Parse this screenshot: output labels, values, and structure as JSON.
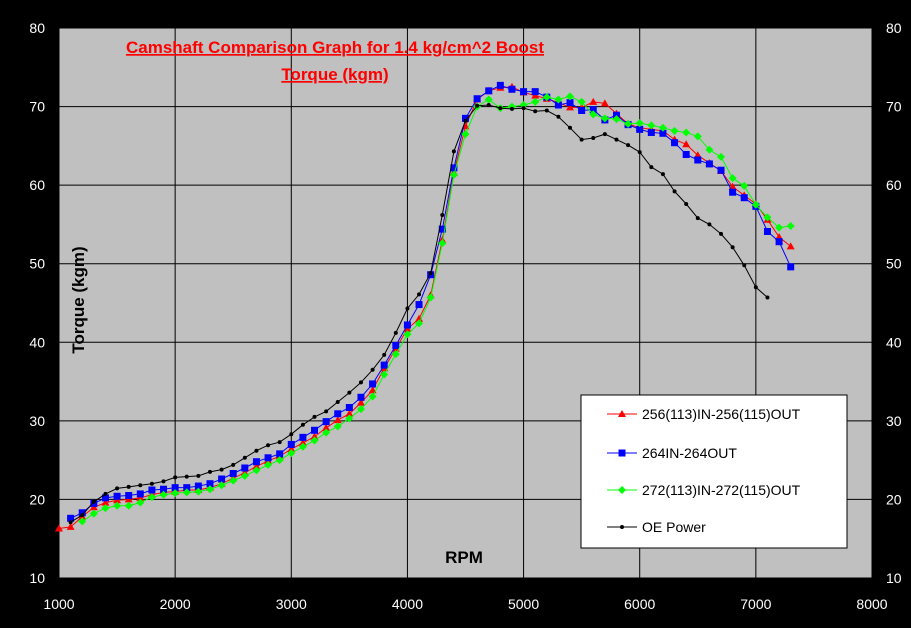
{
  "chart_data": {
    "type": "line",
    "title": "Camshaft Comparison Graph for 1.4 kg/cm^2 Boost",
    "subtitle": "Torque (kgm)",
    "xlabel": "RPM",
    "ylabel": "Torque (kgm)",
    "xlim": [
      1000,
      8000
    ],
    "ylim": [
      10,
      80
    ],
    "x_ticks": [
      1000,
      2000,
      3000,
      4000,
      5000,
      6000,
      7000,
      8000
    ],
    "y_ticks": [
      10,
      20,
      30,
      40,
      50,
      60,
      70,
      80
    ],
    "grid": true,
    "secondary_y_axis": true,
    "legend_position": "bottom-right",
    "colors": {
      "background": "#000000",
      "plot_area": "#c0c0c0",
      "grid": "#000000",
      "title": "#ff0000",
      "tick_text": "#ffffff",
      "axis_label": "#000000"
    },
    "series": [
      {
        "name": "256(113)IN-256(115)OUT",
        "color": "#ff0000",
        "marker": "triangle",
        "points": [
          [
            1000,
            16.3
          ],
          [
            1100,
            16.5
          ],
          [
            1200,
            17.8
          ],
          [
            1300,
            19.0
          ],
          [
            1400,
            19.6
          ],
          [
            1500,
            19.9
          ],
          [
            1600,
            20.0
          ],
          [
            1700,
            20.2
          ],
          [
            1800,
            20.6
          ],
          [
            1900,
            20.9
          ],
          [
            2000,
            21.0
          ],
          [
            2100,
            21.2
          ],
          [
            2200,
            21.2
          ],
          [
            2300,
            21.5
          ],
          [
            2400,
            22.0
          ],
          [
            2500,
            22.7
          ],
          [
            2600,
            23.4
          ],
          [
            2700,
            24.2
          ],
          [
            2800,
            24.9
          ],
          [
            2900,
            25.5
          ],
          [
            3000,
            26.4
          ],
          [
            3100,
            27.2
          ],
          [
            3200,
            28.0
          ],
          [
            3300,
            29.1
          ],
          [
            3400,
            30.1
          ],
          [
            3500,
            30.9
          ],
          [
            3600,
            32.3
          ],
          [
            3700,
            33.9
          ],
          [
            3800,
            36.7
          ],
          [
            3900,
            39.2
          ],
          [
            4000,
            41.7
          ],
          [
            4100,
            43.0
          ],
          [
            4200,
            46.0
          ],
          [
            4300,
            53.0
          ],
          [
            4400,
            61.6
          ],
          [
            4500,
            67.5
          ],
          [
            4600,
            70.9
          ],
          [
            4700,
            72.0
          ],
          [
            4800,
            72.4
          ],
          [
            4900,
            72.5
          ],
          [
            5000,
            71.8
          ],
          [
            5100,
            71.4
          ],
          [
            5200,
            71.0
          ],
          [
            5300,
            70.5
          ],
          [
            5400,
            69.9
          ],
          [
            5500,
            69.9
          ],
          [
            5600,
            70.6
          ],
          [
            5700,
            70.4
          ],
          [
            5800,
            69.1
          ],
          [
            5900,
            67.8
          ],
          [
            6000,
            67.3
          ],
          [
            6100,
            67.1
          ],
          [
            6200,
            66.9
          ],
          [
            6300,
            65.8
          ],
          [
            6400,
            65.2
          ],
          [
            6500,
            63.8
          ],
          [
            6600,
            62.8
          ],
          [
            6700,
            61.8
          ],
          [
            6800,
            59.8
          ],
          [
            6900,
            58.7
          ],
          [
            7000,
            57.6
          ],
          [
            7100,
            55.6
          ],
          [
            7200,
            53.4
          ],
          [
            7300,
            52.2
          ]
        ]
      },
      {
        "name": "264IN-264OUT",
        "color": "#0000ff",
        "marker": "square",
        "points": [
          [
            1100,
            17.6
          ],
          [
            1200,
            18.3
          ],
          [
            1300,
            19.5
          ],
          [
            1400,
            20.2
          ],
          [
            1500,
            20.4
          ],
          [
            1600,
            20.5
          ],
          [
            1700,
            20.7
          ],
          [
            1800,
            21.2
          ],
          [
            1900,
            21.3
          ],
          [
            2000,
            21.5
          ],
          [
            2100,
            21.5
          ],
          [
            2200,
            21.7
          ],
          [
            2300,
            22.0
          ],
          [
            2400,
            22.6
          ],
          [
            2500,
            23.3
          ],
          [
            2600,
            24.0
          ],
          [
            2700,
            24.8
          ],
          [
            2800,
            25.3
          ],
          [
            2900,
            25.8
          ],
          [
            3000,
            27.0
          ],
          [
            3100,
            27.9
          ],
          [
            3200,
            28.8
          ],
          [
            3300,
            29.9
          ],
          [
            3400,
            30.9
          ],
          [
            3500,
            31.7
          ],
          [
            3600,
            33.0
          ],
          [
            3700,
            34.7
          ],
          [
            3800,
            37.1
          ],
          [
            3900,
            39.6
          ],
          [
            4000,
            42.2
          ],
          [
            4100,
            44.8
          ],
          [
            4200,
            48.6
          ],
          [
            4300,
            54.4
          ],
          [
            4400,
            62.2
          ],
          [
            4500,
            68.5
          ],
          [
            4600,
            71.0
          ],
          [
            4700,
            72.0
          ],
          [
            4800,
            72.7
          ],
          [
            4900,
            72.2
          ],
          [
            5000,
            71.9
          ],
          [
            5100,
            71.9
          ],
          [
            5200,
            71.2
          ],
          [
            5300,
            70.2
          ],
          [
            5400,
            70.5
          ],
          [
            5500,
            69.5
          ],
          [
            5600,
            69.6
          ],
          [
            5700,
            68.3
          ],
          [
            5800,
            68.9
          ],
          [
            5900,
            67.7
          ],
          [
            6000,
            67.1
          ],
          [
            6100,
            66.7
          ],
          [
            6200,
            66.6
          ],
          [
            6300,
            65.4
          ],
          [
            6400,
            63.9
          ],
          [
            6500,
            63.2
          ],
          [
            6600,
            62.7
          ],
          [
            6700,
            61.9
          ],
          [
            6800,
            59.1
          ],
          [
            6900,
            58.4
          ],
          [
            7000,
            57.3
          ],
          [
            7100,
            54.1
          ],
          [
            7200,
            52.8
          ],
          [
            7300,
            49.6
          ]
        ]
      },
      {
        "name": "272(113)IN-272(115)OUT",
        "color": "#00ff00",
        "marker": "diamond",
        "points": [
          [
            1200,
            17.2
          ],
          [
            1300,
            18.2
          ],
          [
            1400,
            18.9
          ],
          [
            1500,
            19.2
          ],
          [
            1600,
            19.2
          ],
          [
            1700,
            19.6
          ],
          [
            1800,
            20.3
          ],
          [
            1900,
            20.6
          ],
          [
            2000,
            20.8
          ],
          [
            2100,
            20.9
          ],
          [
            2200,
            21.0
          ],
          [
            2300,
            21.3
          ],
          [
            2400,
            21.8
          ],
          [
            2500,
            22.4
          ],
          [
            2600,
            23.0
          ],
          [
            2700,
            23.7
          ],
          [
            2800,
            24.4
          ],
          [
            2900,
            25.0
          ],
          [
            3000,
            25.9
          ],
          [
            3100,
            26.7
          ],
          [
            3200,
            27.5
          ],
          [
            3300,
            28.5
          ],
          [
            3400,
            29.3
          ],
          [
            3500,
            30.3
          ],
          [
            3600,
            31.5
          ],
          [
            3700,
            33.1
          ],
          [
            3800,
            35.9
          ],
          [
            3900,
            38.5
          ],
          [
            4000,
            41.0
          ],
          [
            4100,
            42.4
          ],
          [
            4200,
            45.7
          ],
          [
            4300,
            52.6
          ],
          [
            4400,
            61.3
          ],
          [
            4500,
            66.5
          ],
          [
            4600,
            70.0
          ],
          [
            4700,
            70.9
          ],
          [
            4800,
            69.8
          ],
          [
            4900,
            70.0
          ],
          [
            5000,
            70.2
          ],
          [
            5100,
            70.6
          ],
          [
            5200,
            71.2
          ],
          [
            5300,
            70.9
          ],
          [
            5400,
            71.3
          ],
          [
            5500,
            70.6
          ],
          [
            5600,
            69.0
          ],
          [
            5700,
            68.5
          ],
          [
            5800,
            68.4
          ],
          [
            5900,
            67.8
          ],
          [
            6000,
            67.9
          ],
          [
            6100,
            67.6
          ],
          [
            6200,
            67.3
          ],
          [
            6300,
            66.9
          ],
          [
            6400,
            66.7
          ],
          [
            6500,
            66.2
          ],
          [
            6600,
            64.5
          ],
          [
            6700,
            63.6
          ],
          [
            6800,
            60.9
          ],
          [
            6900,
            59.9
          ],
          [
            7000,
            57.5
          ],
          [
            7100,
            55.9
          ],
          [
            7200,
            54.6
          ],
          [
            7300,
            54.8
          ]
        ]
      },
      {
        "name": "OE Power",
        "color": "#000000",
        "marker": "dot",
        "points": [
          [
            1100,
            17.1
          ],
          [
            1200,
            18.0
          ],
          [
            1300,
            19.7
          ],
          [
            1400,
            20.7
          ],
          [
            1500,
            21.4
          ],
          [
            1600,
            21.6
          ],
          [
            1700,
            21.8
          ],
          [
            1800,
            22.0
          ],
          [
            1900,
            22.3
          ],
          [
            2000,
            22.8
          ],
          [
            2100,
            22.9
          ],
          [
            2200,
            23.0
          ],
          [
            2300,
            23.5
          ],
          [
            2400,
            23.8
          ],
          [
            2500,
            24.4
          ],
          [
            2600,
            25.3
          ],
          [
            2700,
            26.2
          ],
          [
            2800,
            26.9
          ],
          [
            2900,
            27.3
          ],
          [
            3000,
            28.3
          ],
          [
            3100,
            29.5
          ],
          [
            3200,
            30.5
          ],
          [
            3300,
            31.2
          ],
          [
            3400,
            32.4
          ],
          [
            3500,
            33.6
          ],
          [
            3600,
            34.9
          ],
          [
            3700,
            36.5
          ],
          [
            3800,
            38.4
          ],
          [
            3900,
            41.2
          ],
          [
            4000,
            44.3
          ],
          [
            4100,
            46.1
          ],
          [
            4200,
            48.8
          ],
          [
            4300,
            56.2
          ],
          [
            4400,
            64.3
          ],
          [
            4500,
            68.2
          ],
          [
            4600,
            70.1
          ],
          [
            4700,
            70.2
          ],
          [
            4800,
            69.8
          ],
          [
            4900,
            69.7
          ],
          [
            5000,
            69.8
          ],
          [
            5100,
            69.4
          ],
          [
            5200,
            69.5
          ],
          [
            5300,
            68.7
          ],
          [
            5400,
            67.3
          ],
          [
            5500,
            65.8
          ],
          [
            5600,
            66.0
          ],
          [
            5700,
            66.5
          ],
          [
            5800,
            65.8
          ],
          [
            5900,
            65.1
          ],
          [
            6000,
            64.2
          ],
          [
            6100,
            62.3
          ],
          [
            6200,
            61.4
          ],
          [
            6300,
            59.2
          ],
          [
            6400,
            57.6
          ],
          [
            6500,
            55.8
          ],
          [
            6600,
            55.0
          ],
          [
            6700,
            53.8
          ],
          [
            6800,
            52.1
          ],
          [
            6900,
            49.8
          ],
          [
            7000,
            47.0
          ],
          [
            7100,
            45.7
          ]
        ]
      }
    ]
  }
}
